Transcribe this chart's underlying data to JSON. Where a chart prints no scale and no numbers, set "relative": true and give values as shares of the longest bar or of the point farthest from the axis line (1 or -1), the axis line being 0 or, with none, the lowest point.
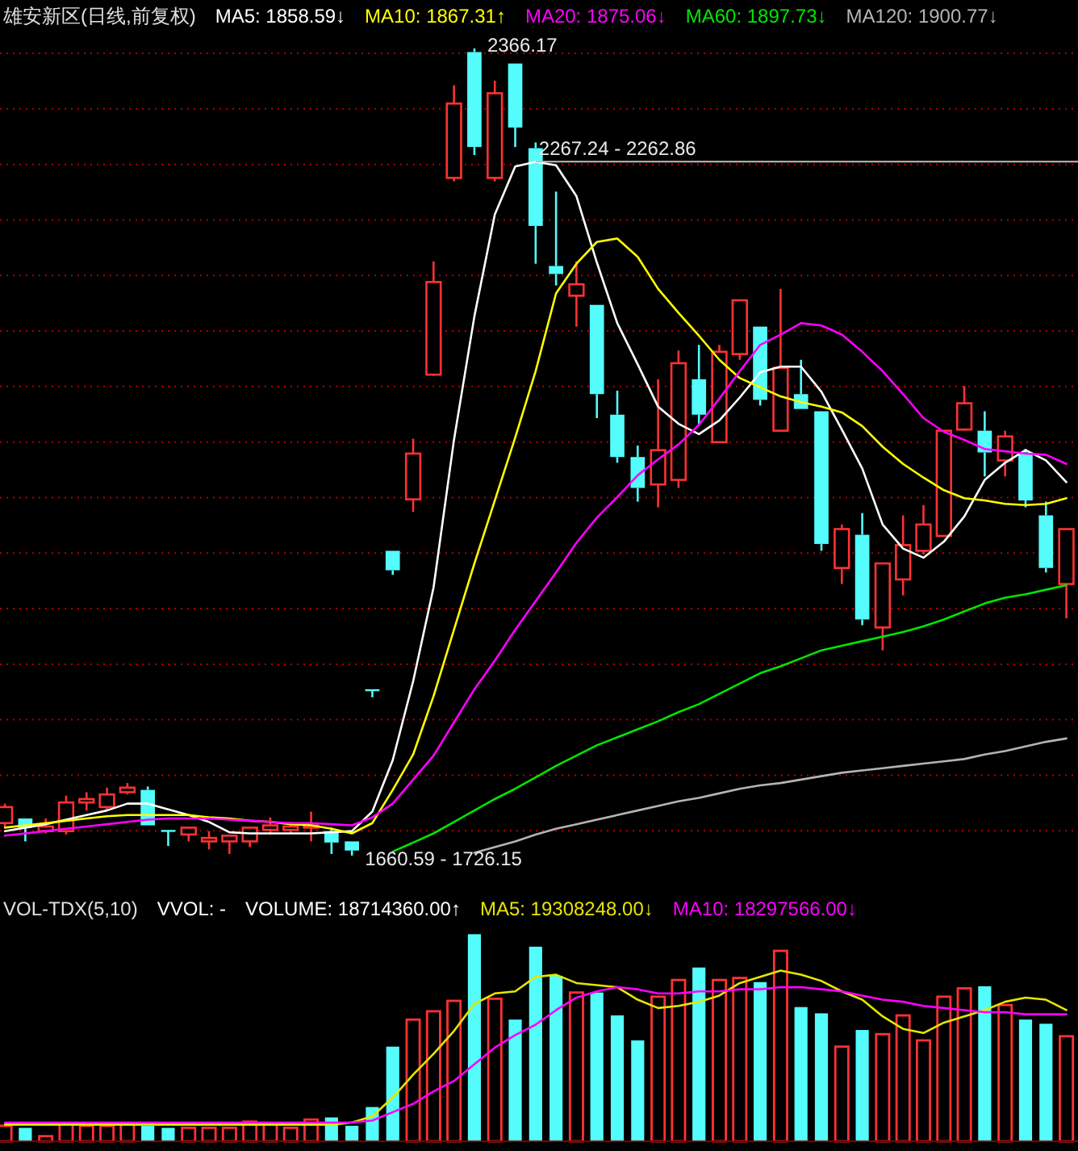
{
  "chart_data": [
    {
      "type": "candlestick",
      "title": "雄安新区(日线,前复权)",
      "grid": true,
      "categories": [
        null,
        null,
        null,
        null,
        null,
        null,
        null,
        null,
        null,
        null,
        null,
        null,
        null,
        null,
        null,
        null,
        null,
        null,
        null,
        null,
        null,
        null,
        null,
        null,
        null,
        null,
        null,
        null,
        null,
        null,
        null,
        null,
        null,
        null,
        null,
        null,
        null,
        null,
        null,
        null,
        null,
        null,
        null,
        null,
        null,
        null,
        null,
        null,
        null,
        null,
        null,
        null,
        null
      ],
      "ohlc": [
        [
          1689,
          1706,
          1686,
          1703
        ],
        [
          1693,
          1693,
          1673,
          1685
        ],
        [
          1682,
          1693,
          1680,
          1686
        ],
        [
          1682,
          1713,
          1679,
          1707
        ],
        [
          1707,
          1716,
          1700,
          1710
        ],
        [
          1703,
          1720,
          1700,
          1714
        ],
        [
          1716,
          1724,
          1714,
          1720
        ],
        [
          1718,
          1721,
          1687,
          1687
        ],
        [
          1683,
          1683,
          1669,
          1682
        ],
        [
          1679,
          1685,
          1673,
          1685
        ],
        [
          1673,
          1682,
          1666,
          1676
        ],
        [
          1673,
          1679,
          1662,
          1678
        ],
        [
          1673,
          1685,
          1668,
          1685
        ],
        [
          1683,
          1694,
          1679,
          1687
        ],
        [
          1683,
          1690,
          1680,
          1686
        ],
        [
          1685,
          1699,
          1673,
          1687
        ],
        [
          1682,
          1685,
          1662,
          1672
        ],
        [
          1673,
          1673,
          1660.59,
          1665
        ],
        [
          1806,
          1806,
          1799,
          1805
        ],
        [
          1927,
          1927,
          1906,
          1910
        ],
        [
          1972,
          2025,
          1961,
          2012
        ],
        [
          2081,
          2180,
          2080,
          2162
        ],
        [
          2253,
          2334,
          2250,
          2318
        ],
        [
          2363,
          2366.17,
          2273,
          2280
        ],
        [
          2253,
          2338,
          2250,
          2327
        ],
        [
          2353,
          2353,
          2280,
          2297
        ],
        [
          2279,
          2284,
          2178,
          2211
        ],
        [
          2176,
          2241,
          2159,
          2169
        ],
        [
          2150,
          2180,
          2123,
          2160
        ],
        [
          2142,
          2142,
          2043,
          2064
        ],
        [
          2046,
          2067,
          2004,
          2009
        ],
        [
          2009,
          2019,
          1970,
          1982
        ],
        [
          1985,
          2077,
          1965,
          2015
        ],
        [
          1989,
          2102,
          1982,
          2091
        ],
        [
          2077,
          2107,
          2037,
          2046
        ],
        [
          2022,
          2107,
          2022,
          2101
        ],
        [
          2099,
          2146,
          2094,
          2146
        ],
        [
          2123,
          2123,
          2054,
          2059
        ],
        [
          2032,
          2156,
          2032,
          2087
        ],
        [
          2064,
          2094,
          2051,
          2051
        ],
        [
          2049,
          2049,
          1927,
          1933
        ],
        [
          1912,
          1950,
          1898,
          1946
        ],
        [
          1941,
          1960,
          1862,
          1867
        ],
        [
          1860,
          1916,
          1840,
          1916
        ],
        [
          1902,
          1958,
          1888,
          1932
        ],
        [
          1927,
          1967,
          1924,
          1950
        ],
        [
          1940,
          2032,
          1940,
          2032
        ],
        [
          2033,
          2071,
          2032,
          2056
        ],
        [
          2032,
          2049,
          1992,
          2013
        ],
        [
          2006,
          2032,
          1992,
          2027
        ],
        [
          2013,
          2016,
          1965,
          1971
        ],
        [
          1958,
          1970,
          1908,
          1912
        ],
        [
          1898,
          1946,
          1868,
          1946
        ]
      ],
      "colors": [
        "#ff3232",
        "#54fcfc",
        "#ff3232",
        "#ff3232",
        "#ff3232",
        "#ff3232",
        "#ff3232",
        "#54fcfc",
        "#54fcfc",
        "#ff3232",
        "#ff3232",
        "#ff3232",
        "#ff3232",
        "#ff3232",
        "#ff3232",
        "#ff3232",
        "#54fcfc",
        "#54fcfc",
        "#54fcfc",
        "#54fcfc",
        "#ff3232",
        "#ff3232",
        "#ff3232",
        "#54fcfc",
        "#ff3232",
        "#54fcfc",
        "#54fcfc",
        "#54fcfc",
        "#ff3232",
        "#54fcfc",
        "#54fcfc",
        "#54fcfc",
        "#ff3232",
        "#ff3232",
        "#54fcfc",
        "#ff3232",
        "#ff3232",
        "#54fcfc",
        "#ff3232",
        "#54fcfc",
        "#54fcfc",
        "#ff3232",
        "#54fcfc",
        "#ff3232",
        "#ff3232",
        "#ff3232",
        "#ff3232",
        "#ff3232",
        "#54fcfc",
        "#ff3232",
        "#54fcfc",
        "#54fcfc",
        "#ff3232"
      ],
      "yticks": [
        {
          "value": 2361.9,
          "label": null
        },
        {
          "value": 2313.4,
          "label": null
        },
        {
          "value": 2264.8,
          "label": null
        },
        {
          "value": 2216.3,
          "label": null
        },
        {
          "value": 2167.8,
          "label": null
        },
        {
          "value": 2119.2,
          "label": null
        },
        {
          "value": 2070.7,
          "label": null
        },
        {
          "value": 2022.1,
          "label": null
        },
        {
          "value": 1973.6,
          "label": null
        },
        {
          "value": 1925.0,
          "label": null
        },
        {
          "value": 1876.5,
          "label": null
        },
        {
          "value": 1827.9,
          "label": null
        },
        {
          "value": 1779.4,
          "label": null
        },
        {
          "value": 1730.8,
          "label": null
        },
        {
          "value": 1682.3,
          "label": null
        }
      ],
      "ref_lines": [
        {
          "axis": "y",
          "value": 2267.24,
          "label": "2267.24 - 2262.86",
          "color": "#c0c0c0"
        }
      ],
      "annotations": [
        "2366.17",
        "1660.59 - 1726.15"
      ],
      "series": [
        {
          "type": "line",
          "name": "MA5: 1858.59↓",
          "color": "#ffffff",
          "values": [
            1682,
            1685,
            1688,
            1692,
            1696,
            1700,
            1706,
            1706,
            1701,
            1696,
            1690,
            1681,
            1680,
            1680,
            1680,
            1680,
            1681,
            1682,
            1699,
            1744,
            1813,
            1895,
            2024,
            2132,
            2221,
            2263,
            2267,
            2264,
            2237,
            2179,
            2126,
            2090,
            2053,
            2038,
            2029,
            2041,
            2061,
            2083,
            2088,
            2088,
            2066,
            2033,
            1999,
            1950,
            1929,
            1921,
            1935,
            1957,
            1989,
            2004,
            2015,
            2006,
            1987
          ]
        },
        {
          "type": "line",
          "name": "MA10: 1867.31↑",
          "color": "#ffff00",
          "values": [
            1685,
            1687,
            1689,
            1691,
            1693,
            1695,
            1696,
            1696,
            1696,
            1696,
            1694,
            1693,
            1691,
            1690,
            1688,
            1687,
            1684,
            1680,
            1689,
            1718,
            1749,
            1800,
            1858,
            1916,
            1971,
            2026,
            2084,
            2152,
            2178,
            2197,
            2200,
            2184,
            2156,
            2135,
            2115,
            2094,
            2078,
            2070,
            2062,
            2057,
            2053,
            2048,
            2036,
            2018,
            2003,
            1991,
            1980,
            1973,
            1971,
            1968,
            1967,
            1968,
            1973
          ]
        },
        {
          "type": "line",
          "name": "MA20: 1875.06↓",
          "color": "#ff00ff",
          "values": [
            1678,
            1680,
            1682,
            1684,
            1686,
            1688,
            1690,
            1692,
            1693,
            1693,
            1693,
            1692,
            1691,
            1690,
            1689,
            1689,
            1688,
            1687,
            1694,
            1706,
            1727,
            1748,
            1777,
            1806,
            1831,
            1858,
            1883,
            1908,
            1934,
            1956,
            1974,
            1993,
            2007,
            2020,
            2037,
            2060,
            2084,
            2107,
            2116,
            2126,
            2124,
            2116,
            2101,
            2084,
            2064,
            2043,
            2031,
            2024,
            2016,
            2014,
            2012,
            2011,
            2003
          ]
        },
        {
          "type": "line",
          "name": "MA60: 1897.73↓",
          "color": "#00e600",
          "values": [
            null,
            null,
            null,
            null,
            null,
            null,
            null,
            null,
            null,
            null,
            null,
            null,
            null,
            null,
            null,
            null,
            null,
            null,
            null,
            1664,
            1672,
            1680,
            1690,
            1700,
            1710,
            1719,
            1729,
            1739,
            1748,
            1757,
            1764,
            1771,
            1778,
            1786,
            1793,
            1802,
            1811,
            1820,
            1826,
            1833,
            1840,
            1844,
            1848,
            1852,
            1856,
            1861,
            1867,
            1874,
            1881,
            1886,
            1889,
            1893,
            1897
          ]
        },
        {
          "type": "line",
          "name": "MA120: 1900.77↓",
          "color": "#b4b4b4",
          "values": [
            null,
            null,
            null,
            null,
            null,
            null,
            null,
            null,
            null,
            null,
            null,
            null,
            null,
            null,
            null,
            null,
            null,
            null,
            null,
            null,
            null,
            null,
            null,
            1663,
            1668,
            1673,
            1679,
            1684,
            1688,
            1692,
            1696,
            1700,
            1704,
            1708,
            1711,
            1715,
            1719,
            1722,
            1724,
            1727,
            1730,
            1733,
            1735,
            1737,
            1739,
            1741,
            1743,
            1745,
            1749,
            1752,
            1756,
            1760,
            1763
          ]
        }
      ]
    },
    {
      "type": "bar",
      "title": "VOL-TDX(5,10)",
      "relative": true,
      "categories": [
        null,
        null,
        null,
        null,
        null,
        null,
        null,
        null,
        null,
        null,
        null,
        null,
        null,
        null,
        null,
        null,
        null,
        null,
        null,
        null,
        null,
        null,
        null,
        null,
        null,
        null,
        null,
        null,
        null,
        null,
        null,
        null,
        null,
        null,
        null,
        null,
        null,
        null,
        null,
        null,
        null,
        null,
        null,
        null,
        null,
        null,
        null,
        null,
        null,
        null,
        null,
        null,
        null
      ],
      "annotations": [
        "VVOL: -",
        "VOLUME: 18714360.00↑"
      ],
      "series": [
        {
          "type": "bar",
          "colors": [
            "#ff3232",
            "#54fcfc",
            "#ff3232",
            "#ff3232",
            "#ff3232",
            "#ff3232",
            "#ff3232",
            "#54fcfc",
            "#54fcfc",
            "#ff3232",
            "#ff3232",
            "#ff3232",
            "#ff3232",
            "#ff3232",
            "#ff3232",
            "#ff3232",
            "#54fcfc",
            "#54fcfc",
            "#54fcfc",
            "#54fcfc",
            "#ff3232",
            "#ff3232",
            "#ff3232",
            "#54fcfc",
            "#ff3232",
            "#54fcfc",
            "#54fcfc",
            "#54fcfc",
            "#ff3232",
            "#54fcfc",
            "#54fcfc",
            "#54fcfc",
            "#ff3232",
            "#ff3232",
            "#54fcfc",
            "#ff3232",
            "#ff3232",
            "#54fcfc",
            "#ff3232",
            "#54fcfc",
            "#54fcfc",
            "#ff3232",
            "#54fcfc",
            "#ff3232",
            "#ff3232",
            "#ff3232",
            "#ff3232",
            "#ff3232",
            "#54fcfc",
            "#ff3232",
            "#54fcfc",
            "#54fcfc",
            "#ff3232"
          ],
          "values": [
            0.08,
            0.07,
            0.03,
            0.09,
            0.08,
            0.08,
            0.09,
            0.08,
            0.07,
            0.07,
            0.07,
            0.07,
            0.1,
            0.09,
            0.07,
            0.11,
            0.12,
            0.08,
            0.17,
            0.46,
            0.59,
            0.63,
            0.68,
            1,
            0.69,
            0.59,
            0.94,
            0.8,
            0.72,
            0.72,
            0.61,
            0.49,
            0.7,
            0.78,
            0.84,
            0.78,
            0.79,
            0.77,
            0.92,
            0.65,
            0.62,
            0.46,
            0.54,
            0.52,
            0.61,
            0.49,
            0.7,
            0.74,
            0.75,
            0.66,
            0.59,
            0.57,
            0.51
          ]
        },
        {
          "type": "line",
          "name": "MA5: 19308248.00↓",
          "color": "#e6e600",
          "values": [
            0.08,
            0.08,
            0.08,
            0.08,
            0.08,
            0.08,
            0.08,
            0.08,
            0.08,
            0.08,
            0.08,
            0.08,
            0.08,
            0.08,
            0.08,
            0.08,
            0.08,
            0.09,
            0.12,
            0.21,
            0.32,
            0.42,
            0.53,
            0.66,
            0.71,
            0.72,
            0.79,
            0.8,
            0.76,
            0.75,
            0.74,
            0.68,
            0.64,
            0.65,
            0.67,
            0.7,
            0.76,
            0.79,
            0.82,
            0.8,
            0.77,
            0.72,
            0.68,
            0.6,
            0.54,
            0.52,
            0.57,
            0.6,
            0.63,
            0.67,
            0.69,
            0.68,
            0.63
          ]
        },
        {
          "type": "line",
          "name": "MA10: 18297566.00↓",
          "color": "#ff00ff",
          "values": [
            0.09,
            0.09,
            0.09,
            0.09,
            0.09,
            0.09,
            0.09,
            0.09,
            0.09,
            0.09,
            0.09,
            0.09,
            0.09,
            0.09,
            0.09,
            0.09,
            0.09,
            0.09,
            0.1,
            0.14,
            0.18,
            0.24,
            0.29,
            0.37,
            0.45,
            0.51,
            0.56,
            0.63,
            0.69,
            0.72,
            0.74,
            0.73,
            0.71,
            0.71,
            0.72,
            0.72,
            0.73,
            0.73,
            0.74,
            0.74,
            0.73,
            0.72,
            0.7,
            0.68,
            0.67,
            0.65,
            0.64,
            0.63,
            0.62,
            0.62,
            0.61,
            0.61,
            0.61
          ]
        }
      ]
    }
  ]
}
